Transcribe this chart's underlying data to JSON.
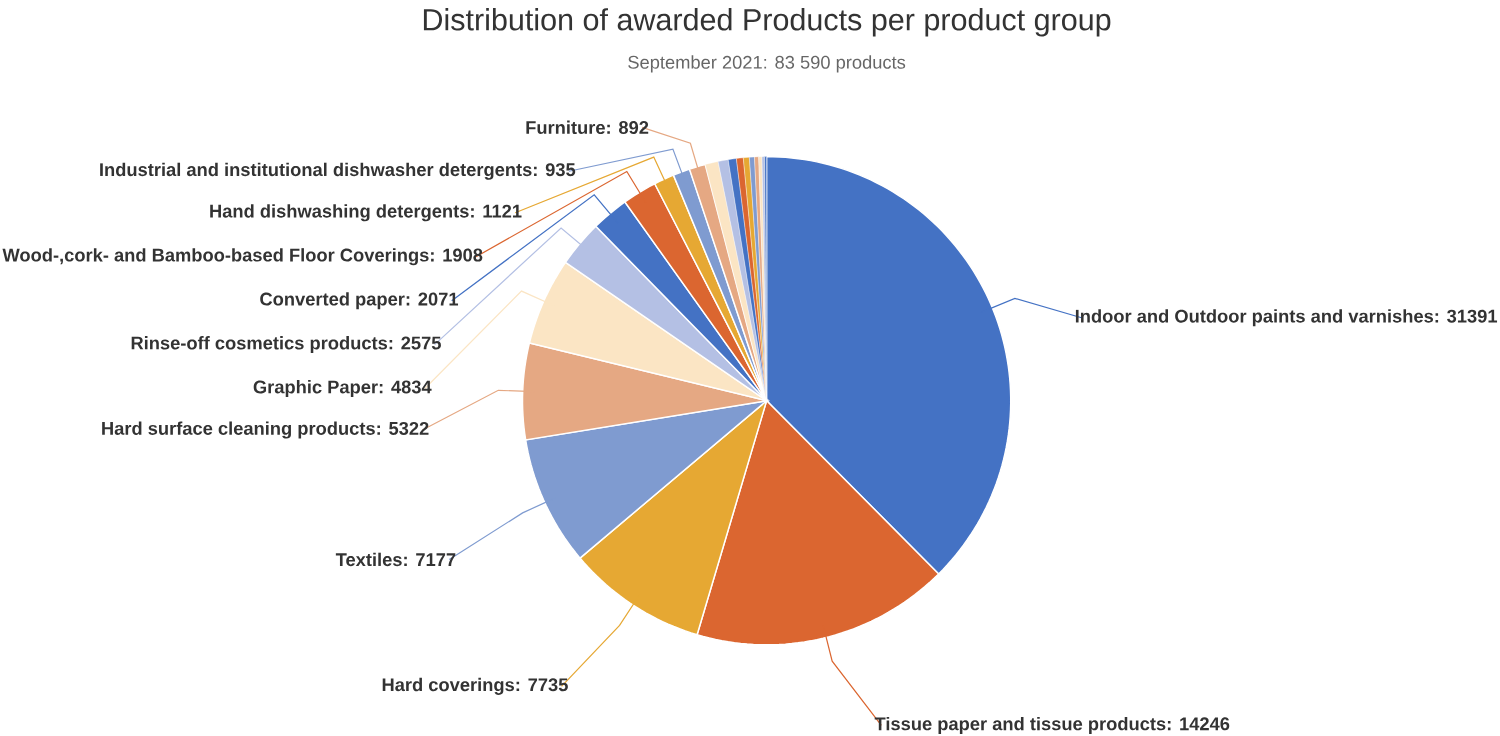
{
  "chart_data": {
    "type": "pie",
    "title": "Distribution of awarded Products per product group",
    "subtitle": "September 2021: 83 590 products",
    "categories": [
      "Indoor and Outdoor paints and varnishes",
      "Tissue paper and tissue products",
      "Hard coverings",
      "Textiles",
      "Hard surface cleaning products",
      "Graphic Paper",
      "Rinse-off cosmetics products",
      "Converted paper",
      "Wood-,cork- and Bamboo-based Floor Coverings",
      "Hand dishwashing detergents",
      "Industrial and institutional dishwasher detergents",
      "Furniture",
      null,
      null,
      null,
      null,
      null,
      null,
      null,
      null,
      null,
      null
    ],
    "values": [
      31391,
      14246,
      7735,
      7177,
      5322,
      4834,
      2575,
      2071,
      1908,
      1121,
      935,
      892,
      720,
      560,
      450,
      380,
      330,
      280,
      230,
      180,
      140,
      113
    ],
    "colors": [
      "#4472c4",
      "#db6630",
      "#e6a833",
      "#7f9bd0",
      "#e5a883",
      "#fbe5c4",
      "#b4c0e4",
      "#4472c4",
      "#db6630",
      "#e6a833",
      "#7f9bd0",
      "#e5a883",
      "#fbe5c4",
      "#b4c0e4",
      "#4472c4",
      "#db6630",
      "#e6a833",
      "#7f9bd0",
      "#e5a883",
      "#fbe5c4",
      "#b4c0e4",
      "#4472c4"
    ],
    "value_labels": [
      ": 31391",
      ": 14246",
      ": 7735",
      ": 7177",
      ": 5322",
      ": 4834",
      ": 2575",
      ": 2071",
      ": 1908",
      ": 1121",
      ": 935",
      ": 892",
      null,
      null,
      null,
      null,
      null,
      null,
      null,
      null,
      null,
      null
    ]
  }
}
